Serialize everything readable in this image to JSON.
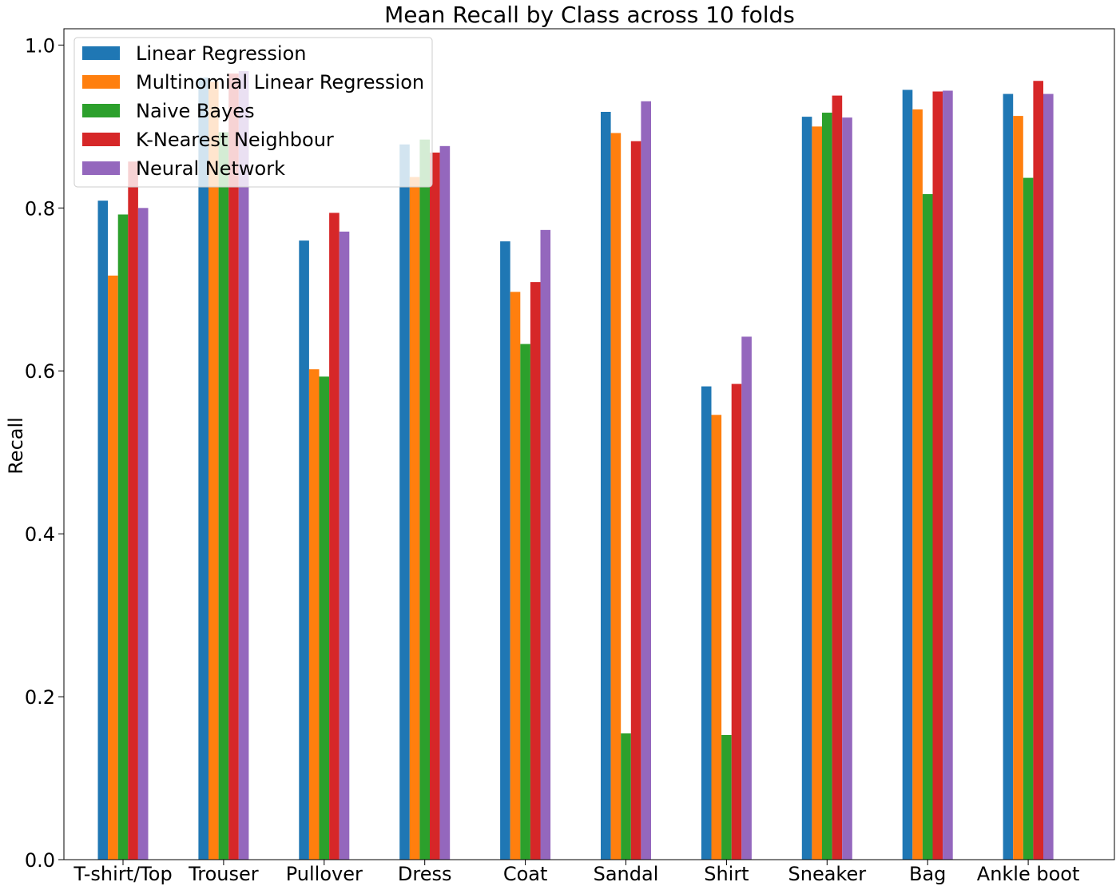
{
  "chart_data": {
    "type": "bar",
    "title": "Mean Recall by Class across 10 folds",
    "xlabel": "",
    "ylabel": "Recall",
    "ylim": [
      0,
      1.02
    ],
    "yticks": [
      "0.0",
      "0.2",
      "0.4",
      "0.6",
      "0.8",
      "1.0"
    ],
    "ytick_values": [
      0,
      0.2,
      0.4,
      0.6,
      0.8,
      1.0
    ],
    "grid": false,
    "legend_position": "top-left",
    "categories": [
      "T-shirt/Top",
      "Trouser",
      "Pullover",
      "Dress",
      "Coat",
      "Sandal",
      "Shirt",
      "Sneaker",
      "Bag",
      "Ankle boot"
    ],
    "series": [
      {
        "name": "Linear Regression",
        "color": "#1f77b4",
        "values": [
          0.809,
          0.96,
          0.76,
          0.878,
          0.759,
          0.918,
          0.581,
          0.912,
          0.945,
          0.94
        ]
      },
      {
        "name": "Multinomial Linear Regression",
        "color": "#ff7f0e",
        "values": [
          0.717,
          0.955,
          0.602,
          0.838,
          0.697,
          0.892,
          0.546,
          0.9,
          0.921,
          0.913
        ]
      },
      {
        "name": "Naive Bayes",
        "color": "#2ca02c",
        "values": [
          0.792,
          0.893,
          0.593,
          0.884,
          0.633,
          0.155,
          0.153,
          0.917,
          0.817,
          0.837
        ]
      },
      {
        "name": "K-Nearest Neighbour",
        "color": "#d62728",
        "values": [
          0.857,
          0.965,
          0.794,
          0.868,
          0.709,
          0.882,
          0.584,
          0.938,
          0.943,
          0.956
        ]
      },
      {
        "name": "Neural Network",
        "color": "#9467bd",
        "values": [
          0.8,
          0.968,
          0.771,
          0.876,
          0.773,
          0.931,
          0.642,
          0.911,
          0.944,
          0.94
        ]
      }
    ]
  }
}
